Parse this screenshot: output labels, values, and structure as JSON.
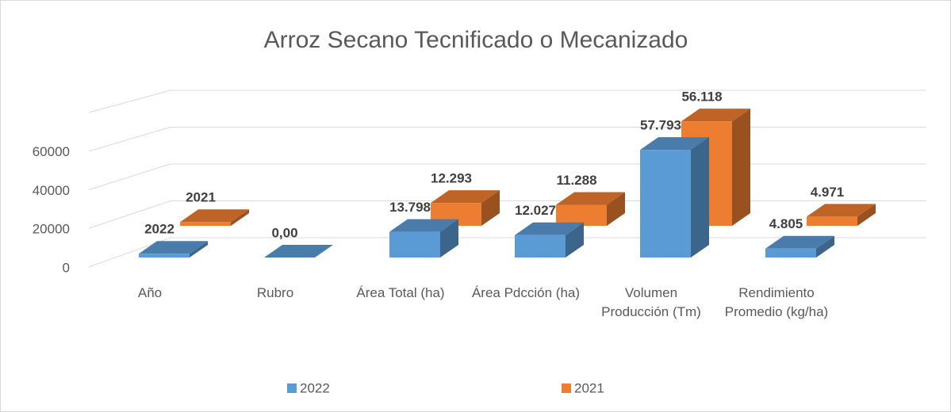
{
  "chart_data": {
    "type": "bar3d",
    "title": "Arroz Secano Tecnificado o Mecanizado",
    "categories": [
      "Año",
      "Rubro",
      "Área Total (ha)",
      "Área Pdcción (ha)",
      "Volumen Producción (Tm)",
      "Rendimiento Promedio (kg/ha)"
    ],
    "series": [
      {
        "name": "2022",
        "color": "#5b9bd5",
        "values": [
          2022,
          0,
          13798,
          12027,
          57793,
          4805
        ],
        "value_labels": [
          "2022",
          "0,00",
          "13.798",
          "12.027",
          "57.793",
          "4.805"
        ]
      },
      {
        "name": "2021",
        "color": "#ed7d31",
        "values": [
          2021,
          null,
          12293,
          11288,
          56118,
          4971
        ],
        "value_labels": [
          "2021",
          null,
          "12.293",
          "11.288",
          "56.118",
          "4.971"
        ]
      }
    ],
    "ylim": [
      0,
      80000
    ],
    "yticks": [
      0,
      20000,
      40000,
      60000
    ],
    "grid": true,
    "legend": "bottom"
  }
}
